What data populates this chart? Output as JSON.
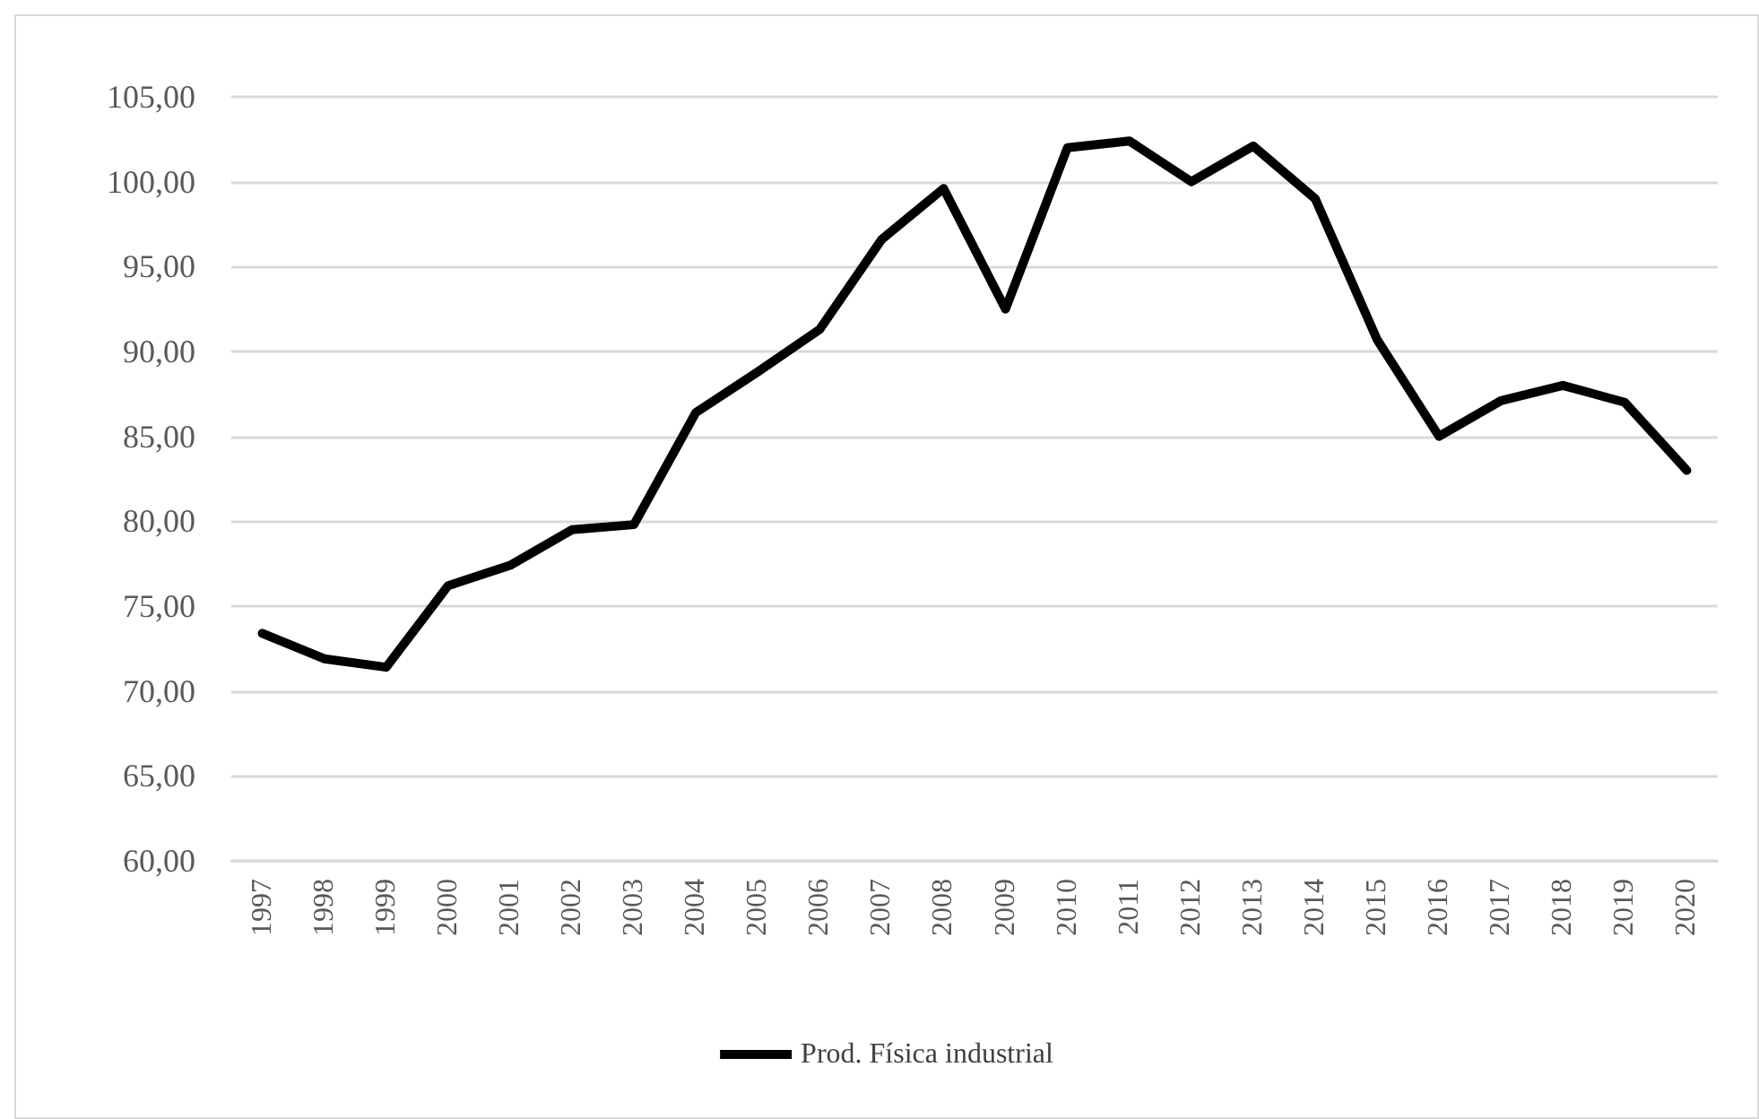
{
  "chart_data": {
    "type": "line",
    "categories": [
      "1997",
      "1998",
      "1999",
      "2000",
      "2001",
      "2002",
      "2003",
      "2004",
      "2005",
      "2006",
      "2007",
      "2008",
      "2009",
      "2010",
      "2011",
      "2012",
      "2013",
      "2014",
      "2015",
      "2016",
      "2017",
      "2018",
      "2019",
      "2020"
    ],
    "series": [
      {
        "name": "Prod. Física industrial",
        "color": "#000000",
        "values": [
          73.4,
          71.9,
          71.4,
          76.2,
          77.4,
          79.5,
          79.8,
          86.4,
          88.8,
          91.3,
          96.6,
          99.6,
          92.5,
          102.0,
          102.4,
          100.0,
          102.1,
          99.0,
          90.7,
          85.0,
          87.1,
          88.0,
          87.0,
          83.0
        ]
      }
    ],
    "ylim": [
      60,
      105
    ],
    "yticks": [
      {
        "value": 60,
        "label": "60,00"
      },
      {
        "value": 65,
        "label": "65,00"
      },
      {
        "value": 70,
        "label": "70,00"
      },
      {
        "value": 75,
        "label": "75,00"
      },
      {
        "value": 80,
        "label": "80,00"
      },
      {
        "value": 85,
        "label": "85,00"
      },
      {
        "value": 90,
        "label": "90,00"
      },
      {
        "value": 95,
        "label": "95,00"
      },
      {
        "value": 100,
        "label": "100,00"
      },
      {
        "value": 105,
        "label": "105,00"
      }
    ],
    "grid": "y",
    "legend": "bottom",
    "marker": "none",
    "line_style": "solid"
  }
}
